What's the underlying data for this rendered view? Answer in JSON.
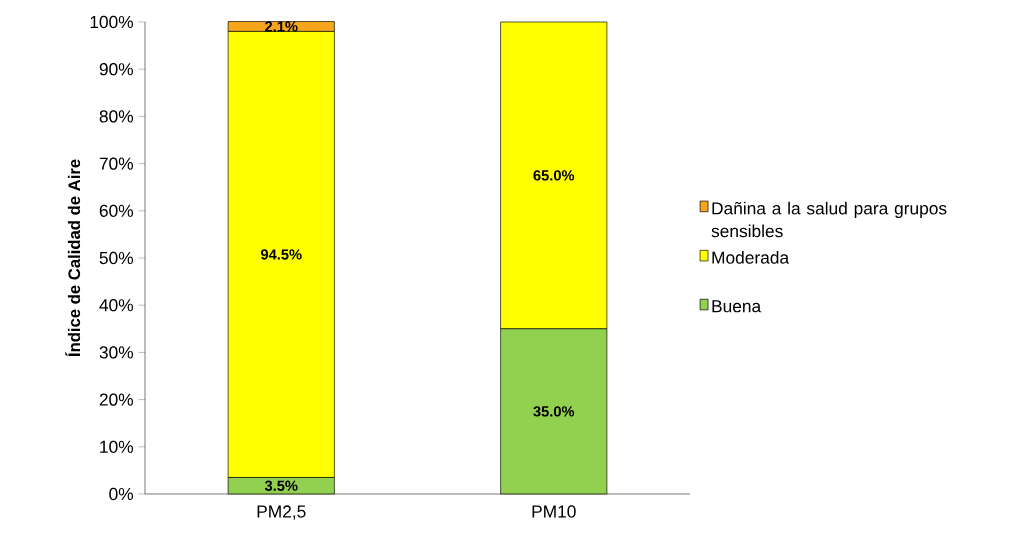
{
  "chart_data": {
    "type": "bar",
    "stacked": true,
    "ylabel": "Índice de Calidad de Aire",
    "categories": [
      "PM2,5",
      "PM10"
    ],
    "series": [
      {
        "name": "Buena",
        "color": "#92d050",
        "values": [
          3.5,
          35.0
        ],
        "value_labels": [
          "3.5%",
          "35.0%"
        ]
      },
      {
        "name": "Moderada",
        "color": "#ffff00",
        "values": [
          94.5,
          65.0
        ],
        "value_labels": [
          "94.5%",
          "65.0%"
        ]
      },
      {
        "name": "Dañina a la salud para grupos sensibles",
        "color": "#f7a51c",
        "values": [
          2.1,
          null
        ],
        "value_labels": [
          "2.1%",
          null
        ]
      }
    ],
    "ylim": [
      0,
      100
    ],
    "yticks": [
      {
        "value": 0,
        "label": "0%"
      },
      {
        "value": 10,
        "label": "10%"
      },
      {
        "value": 20,
        "label": "20%"
      },
      {
        "value": 30,
        "label": "30%"
      },
      {
        "value": 40,
        "label": "40%"
      },
      {
        "value": 50,
        "label": "50%"
      },
      {
        "value": 60,
        "label": "60%"
      },
      {
        "value": 70,
        "label": "70%"
      },
      {
        "value": 80,
        "label": "80%"
      },
      {
        "value": 90,
        "label": "90%"
      },
      {
        "value": 100,
        "label": "100%"
      }
    ],
    "legend": "right",
    "grid": false
  }
}
